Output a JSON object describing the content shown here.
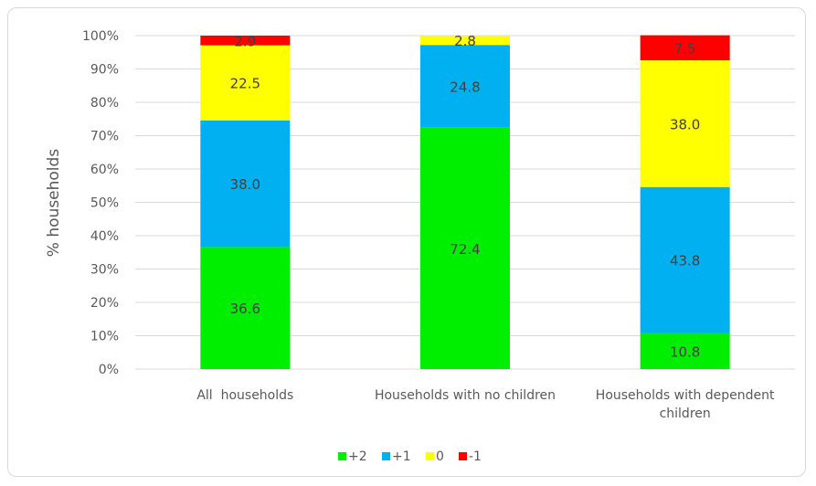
{
  "chart_data": {
    "type": "bar",
    "stacked": true,
    "ylabel": "% households",
    "xlabel": "",
    "ylim": [
      0,
      100
    ],
    "yticks": [
      "0%",
      "10%",
      "20%",
      "30%",
      "40%",
      "50%",
      "60%",
      "70%",
      "80%",
      "90%",
      "100%"
    ],
    "grid": true,
    "legend_position": "bottom",
    "categories": [
      [
        "All  households"
      ],
      [
        "Households with no children"
      ],
      [
        "Households with dependent",
        "children"
      ]
    ],
    "series": [
      {
        "name": "+2",
        "color": "#00ee00",
        "values": [
          36.6,
          72.4,
          10.8
        ]
      },
      {
        "name": "+1",
        "color": "#00b0f0",
        "values": [
          38.0,
          24.8,
          43.8
        ]
      },
      {
        "name": "0",
        "color": "#ffff00",
        "values": [
          22.5,
          2.8,
          38.0
        ]
      },
      {
        "name": "-1",
        "color": "#ff0000",
        "values": [
          2.9,
          0.0,
          7.5
        ]
      }
    ],
    "data_labels": [
      [
        "36.6",
        "38.0",
        "22.5",
        "2.9"
      ],
      [
        "72.4",
        "24.8",
        "2.8",
        ""
      ],
      [
        "10.8",
        "43.8",
        "38.0",
        "7.5"
      ]
    ]
  }
}
